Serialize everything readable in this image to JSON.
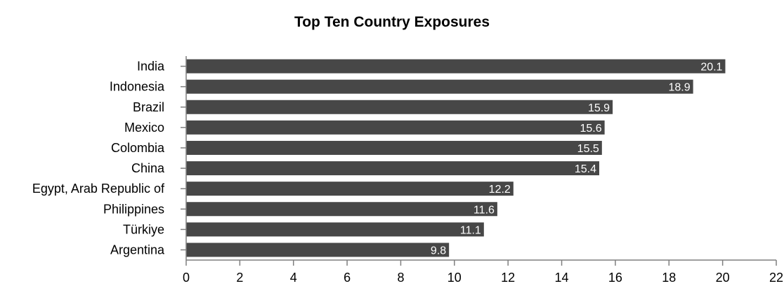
{
  "chart_data": {
    "type": "bar",
    "orientation": "horizontal",
    "title": "Top Ten Country Exposures",
    "xlabel": "",
    "ylabel": "",
    "categories": [
      "India",
      "Indonesia",
      "Brazil",
      "Mexico",
      "Colombia",
      "China",
      "Egypt, Arab Republic of",
      "Philippines",
      "Türkiye",
      "Argentina"
    ],
    "values": [
      20.1,
      18.9,
      15.9,
      15.6,
      15.5,
      15.4,
      12.2,
      11.6,
      11.1,
      9.8
    ],
    "data_labels": [
      "20.1",
      "18.9",
      "15.9",
      "15.6",
      "15.5",
      "15.4",
      "12.2",
      "11.6",
      "11.1",
      "9.8"
    ],
    "xlim": [
      0,
      22
    ],
    "xticks": [
      0,
      2,
      4,
      6,
      8,
      10,
      12,
      14,
      16,
      18,
      20,
      22
    ],
    "grid": false,
    "legend": "none",
    "bar_color": "#474747",
    "label_color": "#ffffff",
    "axis_color": "#7f7f7f"
  }
}
